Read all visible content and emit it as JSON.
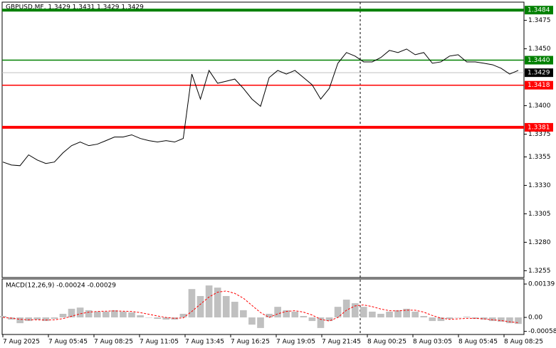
{
  "chart_data": [
    {
      "type": "line",
      "title": "GBPUSD.MF, 1.3429 1.3431 1.3429 1.3429",
      "ylim": [
        1.3249,
        1.3491
      ],
      "yticks": [
        1.3475,
        {
          "value": 1.345,
          "label": "1.3450"
        },
        {
          "value": 1.34,
          "label": "1.3400"
        },
        1.3375,
        1.3355,
        {
          "value": 1.333,
          "label": "1.3330"
        },
        1.3305,
        {
          "value": 1.328,
          "label": "1.3280"
        },
        1.3255
      ],
      "xticks": [
        "7 Aug 2025",
        "7 Aug 05:45",
        "7 Aug 08:25",
        "7 Aug 11:05",
        "7 Aug 13:45",
        "7 Aug 16:25",
        "7 Aug 19:05",
        "7 Aug 21:45",
        "8 Aug 00:25",
        "8 Aug 03:05",
        "8 Aug 05:45",
        "8 Aug 08:25"
      ],
      "color": "#000000",
      "values": [
        1.33505,
        1.33479,
        1.33473,
        1.33568,
        1.33523,
        1.33492,
        1.33505,
        1.33586,
        1.33649,
        1.33681,
        1.33649,
        1.33662,
        1.33693,
        1.33725,
        1.33725,
        1.33744,
        1.33712,
        1.33693,
        1.33681,
        1.33693,
        1.33681,
        1.33712,
        1.34278,
        1.34058,
        1.3431,
        1.34197,
        1.34215,
        1.34234,
        1.34152,
        1.34058,
        1.33995,
        1.34247,
        1.3431,
        1.34278,
        1.3431,
        1.34247,
        1.34184,
        1.34058,
        1.34152,
        1.34373,
        1.34467,
        1.34436,
        1.34385,
        1.34385,
        1.34423,
        1.34486,
        1.34467,
        1.34498,
        1.34448,
        1.34467,
        1.34373,
        1.34385,
        1.34436,
        1.34448,
        1.34385,
        1.34385,
        1.34373,
        1.3436,
        1.34329,
        1.34278,
        1.3431
      ],
      "levels": [
        {
          "value": 1.3484,
          "color": "#008000",
          "width": 4
        },
        {
          "value": 1.344,
          "label": "1.3440",
          "color": "#008000",
          "width": 1.5
        },
        {
          "value": 1.3418,
          "color": "#ff0000",
          "width": 1.5
        },
        {
          "value": 1.3381,
          "color": "#ff0000",
          "width": 4
        }
      ],
      "last": {
        "value": 1.3429,
        "color": "#000000"
      }
    },
    {
      "type": "macd",
      "title": "MACD(12,26,9) -0.00024 -0.00029",
      "ylim": [
        -0.00071,
        0.0016
      ],
      "yticks": [
        0.00139,
        {
          "value": 0,
          "label": "0.00"
        },
        -0.00058
      ],
      "series": [
        {
          "color": "#c0c0c0",
          "values": [
            6e-05,
            -9e-05,
            -0.00024,
            -0.00015,
            -9e-05,
            -0.00015,
            -6e-05,
            0.00015,
            0.00036,
            0.00041,
            0.0003,
            0.00024,
            0.00024,
            0.0003,
            0.00024,
            0.00021,
            9e-05,
            0,
            -6e-05,
            -9e-05,
            -9e-05,
            0.00015,
            0.00118,
            0.00089,
            0.00133,
            0.00124,
            0.00089,
            0.00065,
            0.0003,
            -0.0003,
            -0.00044,
            0.00015,
            0.00044,
            0.0003,
            0.00024,
            6e-05,
            -0.00015,
            -0.00044,
            -0.00015,
            0.00044,
            0.00074,
            0.00059,
            0.00044,
            0.00024,
            0.00015,
            0.00024,
            0.0003,
            0.00036,
            0.00024,
            6e-05,
            -0.00015,
            -0.00015,
            -6e-05,
            0,
            3e-05,
            -6e-05,
            -9e-05,
            -0.00015,
            -0.00018,
            -0.00024,
            -0.00027
          ]
        },
        {
          "color": "#ff0000",
          "values": [
            0,
            -3e-05,
            -8e-05,
            -0.0001,
            -0.0001,
            -0.00011,
            -0.0001,
            -5e-05,
            5e-05,
            0.00015,
            0.00022,
            0.00025,
            0.00026,
            0.00027,
            0.00026,
            0.00025,
            0.0002,
            0.00013,
            6e-05,
            0,
            -4e-05,
            -2e-05,
            0.00025,
            0.00055,
            0.00085,
            0.00105,
            0.0011,
            0.001,
            0.0008,
            0.0005,
            0.0002,
            0,
            0.00015,
            0.00025,
            0.00028,
            0.00022,
            0.0001,
            -8e-05,
            -0.00015,
            0,
            0.0003,
            0.00048,
            0.00052,
            0.00045,
            0.00035,
            0.00028,
            0.00027,
            0.0003,
            0.0003,
            0.00022,
            8e-05,
            -3e-05,
            -8e-05,
            -6e-05,
            -4e-05,
            -4e-05,
            -6e-05,
            -0.0001,
            -0.00013,
            -0.00018,
            -0.00022
          ]
        }
      ]
    }
  ]
}
